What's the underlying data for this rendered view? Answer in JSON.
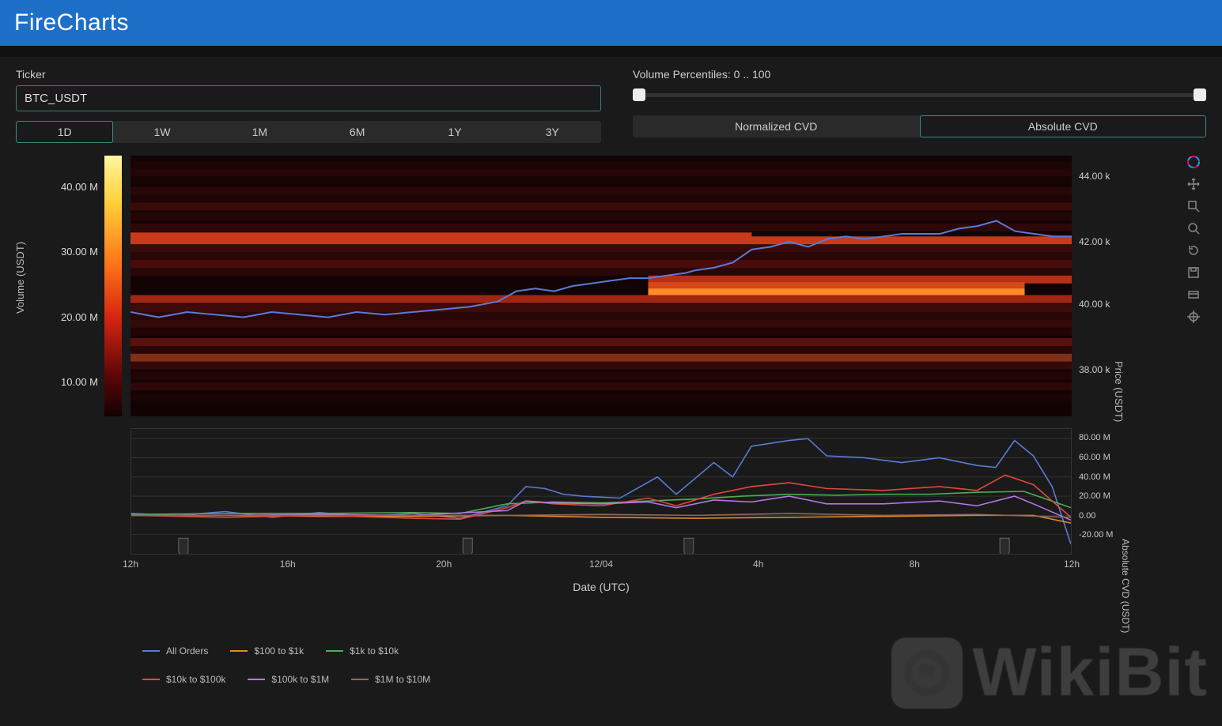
{
  "app": {
    "title": "FireCharts"
  },
  "controls": {
    "ticker_label": "Ticker",
    "ticker_value": "BTC_USDT",
    "slider_label": "Volume Percentiles: 0 .. 100",
    "slider_min": 0,
    "slider_max": 100,
    "periods": [
      "1D",
      "1W",
      "1M",
      "6M",
      "1Y",
      "3Y"
    ],
    "period_active": "1D",
    "cvd_modes": [
      "Normalized CVD",
      "Absolute CVD"
    ],
    "cvd_active": "Absolute CVD"
  },
  "colorbar": {
    "label": "Volume (USDT)",
    "ticks": [
      {
        "v": "40.00 M",
        "t": 0.12
      },
      {
        "v": "30.00 M",
        "t": 0.37
      },
      {
        "v": "20.00 M",
        "t": 0.62
      },
      {
        "v": "10.00 M",
        "t": 0.87
      }
    ],
    "gradient_stops": [
      {
        "p": 0,
        "c": "#fff7a0"
      },
      {
        "p": 18,
        "c": "#ffcf3a"
      },
      {
        "p": 40,
        "c": "#ff7a1a"
      },
      {
        "p": 62,
        "c": "#d62510"
      },
      {
        "p": 85,
        "c": "#5a0606"
      },
      {
        "p": 100,
        "c": "#120202"
      }
    ]
  },
  "heat_rows": [
    {
      "y": 0.02,
      "c": "#1a0404",
      "w": 1.0
    },
    {
      "y": 0.05,
      "c": "#240606",
      "w": 1.0
    },
    {
      "y": 0.08,
      "c": "#180303",
      "w": 1.0
    },
    {
      "y": 0.12,
      "c": "#2a0707",
      "w": 1.0
    },
    {
      "y": 0.15,
      "c": "#1e0404",
      "w": 1.0
    },
    {
      "y": 0.18,
      "c": "#3a0a08",
      "w": 1.0
    },
    {
      "y": 0.22,
      "c": "#240606",
      "w": 1.0
    },
    {
      "y": 0.26,
      "c": "#2e0808",
      "w": 1.0
    },
    {
      "y": 0.295,
      "c": "#8a1a0e",
      "w": 0.66,
      "o": 0,
      "c2": "#c93a1a"
    },
    {
      "y": 0.31,
      "c": "#c93a1a",
      "w": 1.0
    },
    {
      "y": 0.34,
      "c": "#3a0a08",
      "w": 1.0
    },
    {
      "y": 0.37,
      "c": "#280707",
      "w": 1.0
    },
    {
      "y": 0.4,
      "c": "#4a0c0a",
      "w": 1.0
    },
    {
      "y": 0.43,
      "c": "#2a0707",
      "w": 1.0
    },
    {
      "y": 0.46,
      "c": "#b82e16",
      "w": 0.58,
      "o": 0.55
    },
    {
      "y": 0.485,
      "c": "#d64818",
      "w": 0.4,
      "o": 0.55
    },
    {
      "y": 0.51,
      "c": "#ff8a2a",
      "w": 0.4,
      "o": 0.55
    },
    {
      "y": 0.535,
      "c": "#a02612",
      "w": 1.0
    },
    {
      "y": 0.57,
      "c": "#3e0b09",
      "w": 1.0
    },
    {
      "y": 0.6,
      "c": "#2a0707",
      "w": 1.0
    },
    {
      "y": 0.63,
      "c": "#340909",
      "w": 1.0
    },
    {
      "y": 0.66,
      "c": "#220505",
      "w": 1.0
    },
    {
      "y": 0.7,
      "c": "#5a100c",
      "w": 1.0
    },
    {
      "y": 0.73,
      "c": "#2a0707",
      "w": 1.0
    },
    {
      "y": 0.76,
      "c": "#803016",
      "w": 1.0
    },
    {
      "y": 0.79,
      "c": "#340909",
      "w": 1.0
    },
    {
      "y": 0.83,
      "c": "#220505",
      "w": 1.0
    },
    {
      "y": 0.87,
      "c": "#2e0808",
      "w": 1.0
    },
    {
      "y": 0.91,
      "c": "#1a0404",
      "w": 1.0
    },
    {
      "y": 0.95,
      "c": "#120303",
      "w": 1.0
    }
  ],
  "price_axis": {
    "label": "Price (USDT)",
    "ticks": [
      {
        "v": "44.00 k",
        "y": 0.08
      },
      {
        "v": "42.00 k",
        "y": 0.33
      },
      {
        "v": "40.00 k",
        "y": 0.57
      },
      {
        "v": "38.00 k",
        "y": 0.82
      }
    ]
  },
  "price_line": {
    "color": "#5a7ad6",
    "width": 2,
    "pts": [
      [
        0,
        0.6
      ],
      [
        0.03,
        0.62
      ],
      [
        0.06,
        0.6
      ],
      [
        0.09,
        0.61
      ],
      [
        0.12,
        0.62
      ],
      [
        0.15,
        0.6
      ],
      [
        0.18,
        0.61
      ],
      [
        0.21,
        0.62
      ],
      [
        0.24,
        0.6
      ],
      [
        0.27,
        0.61
      ],
      [
        0.3,
        0.6
      ],
      [
        0.33,
        0.59
      ],
      [
        0.36,
        0.58
      ],
      [
        0.39,
        0.56
      ],
      [
        0.41,
        0.52
      ],
      [
        0.43,
        0.51
      ],
      [
        0.45,
        0.52
      ],
      [
        0.47,
        0.5
      ],
      [
        0.49,
        0.49
      ],
      [
        0.51,
        0.48
      ],
      [
        0.53,
        0.47
      ],
      [
        0.55,
        0.47
      ],
      [
        0.57,
        0.46
      ],
      [
        0.59,
        0.45
      ],
      [
        0.6,
        0.44
      ],
      [
        0.62,
        0.43
      ],
      [
        0.64,
        0.41
      ],
      [
        0.66,
        0.36
      ],
      [
        0.68,
        0.35
      ],
      [
        0.7,
        0.33
      ],
      [
        0.72,
        0.35
      ],
      [
        0.74,
        0.32
      ],
      [
        0.76,
        0.31
      ],
      [
        0.78,
        0.32
      ],
      [
        0.8,
        0.31
      ],
      [
        0.82,
        0.3
      ],
      [
        0.84,
        0.3
      ],
      [
        0.86,
        0.3
      ],
      [
        0.88,
        0.28
      ],
      [
        0.9,
        0.27
      ],
      [
        0.92,
        0.25
      ],
      [
        0.94,
        0.29
      ],
      [
        0.96,
        0.3
      ],
      [
        0.98,
        0.31
      ],
      [
        1.0,
        0.31
      ]
    ]
  },
  "cvd": {
    "label": "Absolute CVD (USDT)",
    "ylim": [
      -40,
      90
    ],
    "ticks": [
      {
        "v": "80.00 M",
        "y": 80
      },
      {
        "v": "60.00 M",
        "y": 60
      },
      {
        "v": "40.00 M",
        "y": 40
      },
      {
        "v": "20.00 M",
        "y": 20
      },
      {
        "v": "0.00",
        "y": 0
      },
      {
        "v": "-20.00 M",
        "y": -20
      }
    ],
    "grid_color": "#333",
    "series": [
      {
        "name": "All Orders",
        "color": "#5a7ad6",
        "pts": [
          [
            0,
            2
          ],
          [
            0.05,
            0
          ],
          [
            0.1,
            4
          ],
          [
            0.15,
            -2
          ],
          [
            0.2,
            3
          ],
          [
            0.25,
            -1
          ],
          [
            0.3,
            2
          ],
          [
            0.35,
            -3
          ],
          [
            0.4,
            10
          ],
          [
            0.42,
            30
          ],
          [
            0.44,
            28
          ],
          [
            0.46,
            22
          ],
          [
            0.48,
            20
          ],
          [
            0.52,
            18
          ],
          [
            0.56,
            40
          ],
          [
            0.58,
            22
          ],
          [
            0.62,
            55
          ],
          [
            0.64,
            40
          ],
          [
            0.66,
            72
          ],
          [
            0.7,
            78
          ],
          [
            0.72,
            80
          ],
          [
            0.74,
            62
          ],
          [
            0.78,
            60
          ],
          [
            0.82,
            55
          ],
          [
            0.86,
            60
          ],
          [
            0.9,
            52
          ],
          [
            0.92,
            50
          ],
          [
            0.94,
            78
          ],
          [
            0.96,
            62
          ],
          [
            0.98,
            30
          ],
          [
            1.0,
            -30
          ]
        ]
      },
      {
        "name": "$100 to $1k",
        "color": "#e08a2e",
        "pts": [
          [
            0,
            0
          ],
          [
            0.1,
            0
          ],
          [
            0.2,
            -1
          ],
          [
            0.3,
            -1
          ],
          [
            0.4,
            0
          ],
          [
            0.5,
            -2
          ],
          [
            0.6,
            -3
          ],
          [
            0.7,
            -2
          ],
          [
            0.8,
            -1
          ],
          [
            0.9,
            0
          ],
          [
            0.96,
            0
          ],
          [
            1.0,
            -8
          ]
        ]
      },
      {
        "name": "$1k to $10k",
        "color": "#4caf50",
        "pts": [
          [
            0,
            1
          ],
          [
            0.1,
            2
          ],
          [
            0.2,
            2
          ],
          [
            0.3,
            3
          ],
          [
            0.35,
            2
          ],
          [
            0.4,
            12
          ],
          [
            0.45,
            14
          ],
          [
            0.5,
            13
          ],
          [
            0.55,
            15
          ],
          [
            0.6,
            17
          ],
          [
            0.65,
            20
          ],
          [
            0.7,
            22
          ],
          [
            0.75,
            21
          ],
          [
            0.8,
            22
          ],
          [
            0.85,
            22
          ],
          [
            0.9,
            24
          ],
          [
            0.95,
            25
          ],
          [
            1.0,
            8
          ]
        ]
      },
      {
        "name": "$10k to $100k",
        "color": "#e0483a",
        "pts": [
          [
            0,
            0
          ],
          [
            0.1,
            -2
          ],
          [
            0.2,
            0
          ],
          [
            0.3,
            -3
          ],
          [
            0.35,
            -4
          ],
          [
            0.4,
            8
          ],
          [
            0.42,
            15
          ],
          [
            0.45,
            12
          ],
          [
            0.5,
            10
          ],
          [
            0.55,
            18
          ],
          [
            0.58,
            10
          ],
          [
            0.62,
            22
          ],
          [
            0.66,
            30
          ],
          [
            0.7,
            34
          ],
          [
            0.74,
            28
          ],
          [
            0.8,
            26
          ],
          [
            0.86,
            30
          ],
          [
            0.9,
            26
          ],
          [
            0.93,
            42
          ],
          [
            0.96,
            32
          ],
          [
            1.0,
            -2
          ]
        ]
      },
      {
        "name": "$100k to $1M",
        "color": "#b676e6",
        "pts": [
          [
            0,
            0
          ],
          [
            0.1,
            0
          ],
          [
            0.2,
            1
          ],
          [
            0.3,
            0
          ],
          [
            0.4,
            5
          ],
          [
            0.42,
            15
          ],
          [
            0.45,
            13
          ],
          [
            0.5,
            12
          ],
          [
            0.55,
            14
          ],
          [
            0.58,
            8
          ],
          [
            0.62,
            16
          ],
          [
            0.66,
            14
          ],
          [
            0.7,
            20
          ],
          [
            0.74,
            12
          ],
          [
            0.8,
            12
          ],
          [
            0.86,
            15
          ],
          [
            0.9,
            10
          ],
          [
            0.94,
            20
          ],
          [
            0.96,
            12
          ],
          [
            1.0,
            -5
          ]
        ]
      },
      {
        "name": "$1M to $10M",
        "color": "#8a6a5a",
        "pts": [
          [
            0,
            0
          ],
          [
            0.2,
            0
          ],
          [
            0.4,
            0
          ],
          [
            0.5,
            1
          ],
          [
            0.6,
            0
          ],
          [
            0.7,
            2
          ],
          [
            0.8,
            0
          ],
          [
            0.9,
            1
          ],
          [
            1.0,
            -2
          ]
        ]
      }
    ]
  },
  "xaxis": {
    "label": "Date (UTC)",
    "ticks": [
      {
        "v": "12h",
        "t": 0.0
      },
      {
        "v": "16h",
        "t": 0.167
      },
      {
        "v": "20h",
        "t": 0.333
      },
      {
        "v": "12/04",
        "t": 0.5
      },
      {
        "v": "4h",
        "t": 0.667
      },
      {
        "v": "8h",
        "t": 0.833
      },
      {
        "v": "12h",
        "t": 1.0
      }
    ]
  },
  "legend_rows": [
    [
      "All Orders",
      "$100 to $1k",
      "$1k to $10k"
    ],
    [
      "$10k to $100k",
      "$100k to $1M",
      "$1M to $10M"
    ]
  ],
  "toolbar_icons": [
    "logo",
    "move",
    "zoom-box",
    "zoom-wheel",
    "reset",
    "save",
    "hover",
    "crosshair"
  ],
  "watermark": "WikiBit",
  "colors": {
    "bg": "#1a1a1a",
    "header": "#1e6fc7",
    "input_border": "#3d7a7a",
    "panel": "#2a2a2a",
    "grid": "#333",
    "text": "#d0d0d0"
  }
}
